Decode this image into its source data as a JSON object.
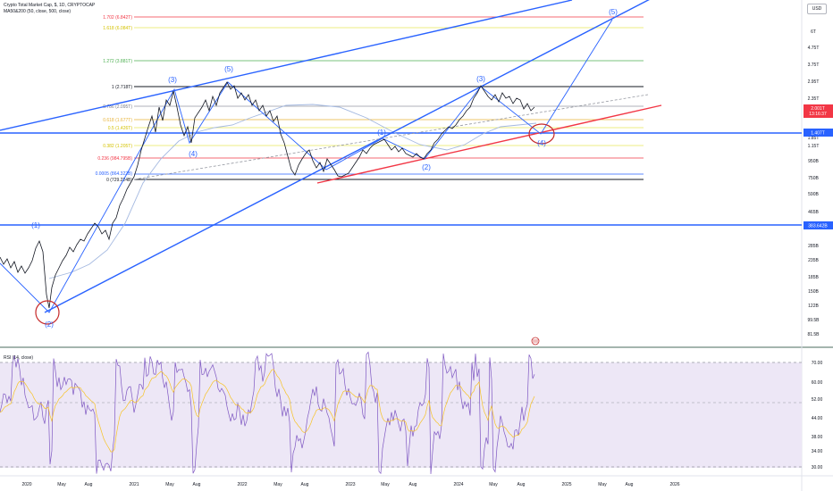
{
  "header": {
    "symbol_line": "Crypto Total Market Cap, $, 1D, CRYPTOCAP",
    "ma_line": "MA50&200 (50, close, 500, close)",
    "currency_button": "USD"
  },
  "fib_levels": [
    {
      "label": "1.702 (6.842T)",
      "color": "#f23645"
    },
    {
      "label": "1.618 (6.084T)",
      "color": "#e8e85a"
    },
    {
      "label": "1.272 (3.881T)",
      "color": "#4caf50"
    },
    {
      "label": "1 (2.718T)",
      "color": "#131722"
    },
    {
      "label": "0.786 (2.095T)",
      "color": "#9598a1"
    },
    {
      "label": "0.618 (1.677T)",
      "color": "#e8b339"
    },
    {
      "label": "0.5 (1.426T)",
      "color": "#e8e85a"
    },
    {
      "label": "0.382 (1.205T)",
      "color": "#e8e85a"
    },
    {
      "label": "0.236 (984.795B)",
      "color": "#f23645"
    },
    {
      "label": "0.0005 (864.322B)",
      "color": "#2962ff"
    },
    {
      "label": "0 (729.224B)",
      "color": "#131722"
    }
  ],
  "wave_labels": [
    "(1)",
    "(2)",
    "(3)",
    "(4)",
    "(5)",
    "(1)",
    "(2)",
    "(3)",
    "(4)",
    "(5)"
  ],
  "price_axis": {
    "ticks": [
      "6T",
      "4.75T",
      "3.75T",
      "2.95T",
      "2.35T",
      "1.85T",
      "1.15T",
      "950B",
      "750B",
      "590B",
      "465B",
      "285B",
      "235B",
      "185B",
      "150B",
      "122B",
      "99.5B",
      "81.5B"
    ],
    "current_price": "2.001T",
    "countdown": "13:16:37",
    "level_1": "1.407T",
    "level_2": "383.642B"
  },
  "rsi": {
    "title": "RSI (14, close)",
    "ticks": [
      "70.00",
      "60.00",
      "52.00",
      "44.00",
      "38.00",
      "34.00",
      "30.00"
    ]
  },
  "time_axis": [
    "2020",
    "May",
    "Aug",
    "2021",
    "May",
    "Aug",
    "2022",
    "May",
    "Aug",
    "2023",
    "May",
    "Aug",
    "2024",
    "May",
    "Aug",
    "2025",
    "May",
    "Aug",
    "2026"
  ],
  "colors": {
    "trend_blue": "#2962ff",
    "channel_red": "#f23645",
    "price_line": "#131722",
    "ma_line": "#a3b8e0",
    "rsi_bg": "#ede7f6",
    "rsi_line": "#7e57c2",
    "rsi_ma": "#f7c325"
  }
}
